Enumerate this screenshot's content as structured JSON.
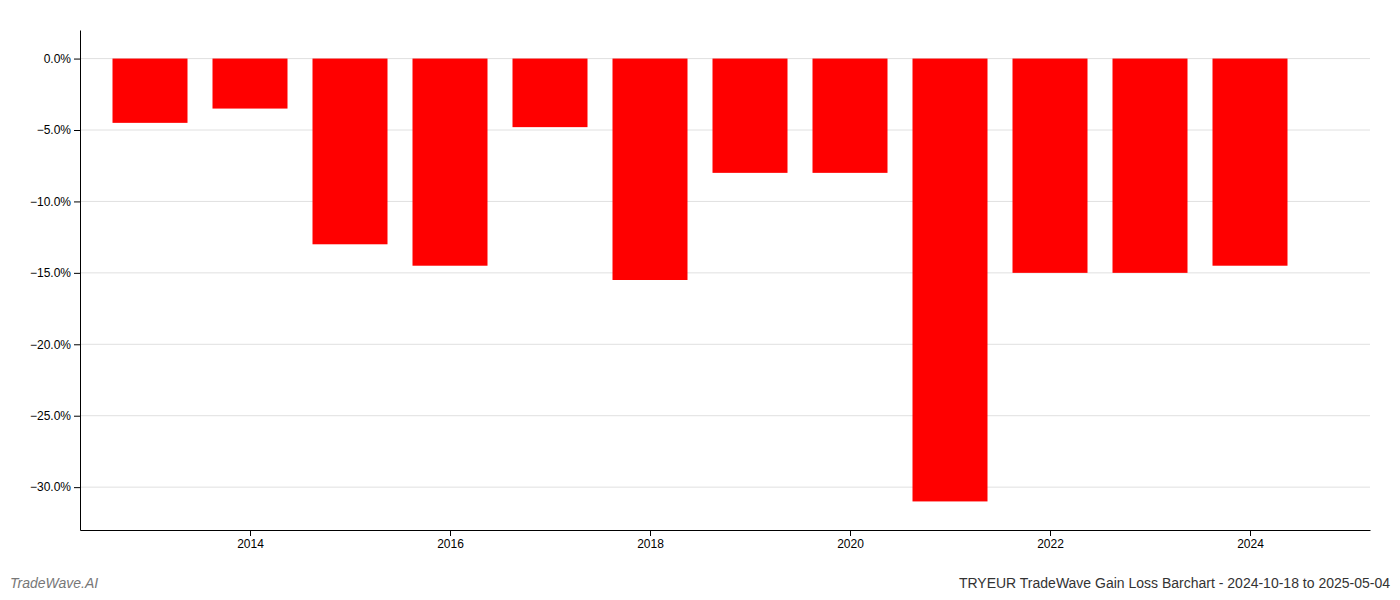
{
  "chart_data": {
    "type": "bar",
    "title": "TRYEUR TradeWave Gain Loss Barchart - 2024-10-18 to 2025-05-04",
    "annotations": [
      "TradeWave.AI"
    ],
    "x": [
      2013,
      2014,
      2015,
      2016,
      2017,
      2018,
      2019,
      2020,
      2021,
      2022,
      2023,
      2024
    ],
    "values": [
      -4.5,
      -3.5,
      -13.0,
      -14.5,
      -4.8,
      -15.5,
      -8.0,
      -8.0,
      -31.0,
      -15.0,
      -15.0,
      -14.5
    ],
    "color": "#FF0000",
    "xlim": [
      2012.3,
      2025.2
    ],
    "xticks": [
      2014,
      2016,
      2018,
      2020,
      2022,
      2024
    ],
    "ylim": [
      -33,
      2
    ],
    "yticks": [
      {
        "value": 0.0,
        "label": "0.0%"
      },
      {
        "value": -5.0,
        "label": "−5.0%"
      },
      {
        "value": -10.0,
        "label": "−10.0%"
      },
      {
        "value": -15.0,
        "label": "−15.0%"
      },
      {
        "value": -20.0,
        "label": "−20.0%"
      },
      {
        "value": -25.0,
        "label": "−25.0%"
      },
      {
        "value": -30.0,
        "label": "−30.0%"
      }
    ],
    "grid": true
  }
}
